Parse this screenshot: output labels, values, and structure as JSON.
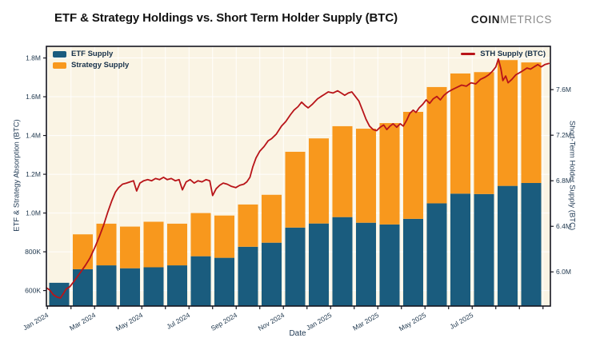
{
  "header": {
    "title": "ETF & Strategy Holdings vs. Short Term Holder Supply (BTC)",
    "logo_coin": "COIN",
    "logo_metrics": "METRICS"
  },
  "chart_data": {
    "type": "bar+line",
    "title": "ETF & Strategy Holdings vs. Short Term Holder Supply (BTC)",
    "plot_bg": "#faf4e4",
    "grid_color": "rgba(255,255,255,0.9)",
    "border_color": "#15151f",
    "categories": [
      "Jan 2024",
      "Feb 2024",
      "Mar 2024",
      "Apr 2024",
      "May 2024",
      "Jun 2024",
      "Jul 2024",
      "Aug 2024",
      "Sep 2024",
      "Oct 2024",
      "Nov 2024",
      "Dec 2024",
      "Jan 2025",
      "Feb 2025",
      "Mar 2025",
      "Apr 2025",
      "May 2025",
      "Jun 2025",
      "Jul 2025",
      "Aug 2025",
      "Sep 2025"
    ],
    "series": [
      {
        "name": "ETF Supply",
        "type": "bar",
        "color": "#1a5c7e",
        "values_k": [
          640,
          710,
          730,
          715,
          720,
          730,
          777,
          769,
          826,
          847,
          925,
          946,
          979,
          950,
          941,
          970,
          1050,
          1100,
          1098,
          1140,
          1155
        ]
      },
      {
        "name": "Strategy Supply",
        "type": "bar",
        "color": "#f8981d",
        "values_k": [
          0,
          180,
          215,
          215,
          235,
          215,
          223,
          218,
          218,
          247,
          391,
          439,
          469,
          485,
          523,
          552,
          600,
          620,
          629,
          649,
          622
        ]
      },
      {
        "name": "STH Supply (BTC)",
        "type": "line",
        "color": "#b81419",
        "axis": "right",
        "points": [
          [
            -0.54,
            5.86
          ],
          [
            -0.4,
            5.84
          ],
          [
            -0.25,
            5.8
          ],
          [
            -0.1,
            5.78
          ],
          [
            0.05,
            5.77
          ],
          [
            0.18,
            5.81
          ],
          [
            0.3,
            5.85
          ],
          [
            0.45,
            5.87
          ],
          [
            0.6,
            5.91
          ],
          [
            0.78,
            5.96
          ],
          [
            0.95,
            6.01
          ],
          [
            1.12,
            6.06
          ],
          [
            1.3,
            6.12
          ],
          [
            1.5,
            6.21
          ],
          [
            1.7,
            6.31
          ],
          [
            1.88,
            6.41
          ],
          [
            2.05,
            6.52
          ],
          [
            2.22,
            6.62
          ],
          [
            2.38,
            6.7
          ],
          [
            2.52,
            6.74
          ],
          [
            2.68,
            6.77
          ],
          [
            2.85,
            6.78
          ],
          [
            3.0,
            6.79
          ],
          [
            3.15,
            6.8
          ],
          [
            3.28,
            6.71
          ],
          [
            3.42,
            6.78
          ],
          [
            3.58,
            6.8
          ],
          [
            3.75,
            6.81
          ],
          [
            3.92,
            6.8
          ],
          [
            4.08,
            6.82
          ],
          [
            4.25,
            6.81
          ],
          [
            4.42,
            6.83
          ],
          [
            4.58,
            6.81
          ],
          [
            4.75,
            6.82
          ],
          [
            4.92,
            6.8
          ],
          [
            5.08,
            6.81
          ],
          [
            5.22,
            6.72
          ],
          [
            5.38,
            6.79
          ],
          [
            5.55,
            6.81
          ],
          [
            5.72,
            6.78
          ],
          [
            5.88,
            6.8
          ],
          [
            6.05,
            6.79
          ],
          [
            6.22,
            6.81
          ],
          [
            6.38,
            6.8
          ],
          [
            6.5,
            6.67
          ],
          [
            6.65,
            6.73
          ],
          [
            6.8,
            6.76
          ],
          [
            6.95,
            6.78
          ],
          [
            7.12,
            6.77
          ],
          [
            7.3,
            6.75
          ],
          [
            7.48,
            6.74
          ],
          [
            7.65,
            6.76
          ],
          [
            7.82,
            6.77
          ],
          [
            7.95,
            6.79
          ],
          [
            8.08,
            6.83
          ],
          [
            8.2,
            6.92
          ],
          [
            8.34,
            7.0
          ],
          [
            8.5,
            7.06
          ],
          [
            8.68,
            7.1
          ],
          [
            8.85,
            7.15
          ],
          [
            9.0,
            7.17
          ],
          [
            9.2,
            7.21
          ],
          [
            9.42,
            7.28
          ],
          [
            9.6,
            7.32
          ],
          [
            9.8,
            7.38
          ],
          [
            9.95,
            7.42
          ],
          [
            10.12,
            7.45
          ],
          [
            10.27,
            7.49
          ],
          [
            10.42,
            7.46
          ],
          [
            10.55,
            7.44
          ],
          [
            10.72,
            7.47
          ],
          [
            10.95,
            7.52
          ],
          [
            11.1,
            7.54
          ],
          [
            11.25,
            7.56
          ],
          [
            11.4,
            7.58
          ],
          [
            11.6,
            7.57
          ],
          [
            11.8,
            7.59
          ],
          [
            11.95,
            7.57
          ],
          [
            12.1,
            7.55
          ],
          [
            12.25,
            7.57
          ],
          [
            12.4,
            7.58
          ],
          [
            12.55,
            7.54
          ],
          [
            12.7,
            7.5
          ],
          [
            12.85,
            7.42
          ],
          [
            13.0,
            7.34
          ],
          [
            13.15,
            7.28
          ],
          [
            13.3,
            7.25
          ],
          [
            13.45,
            7.24
          ],
          [
            13.6,
            7.27
          ],
          [
            13.75,
            7.29
          ],
          [
            13.88,
            7.25
          ],
          [
            14.02,
            7.28
          ],
          [
            14.15,
            7.3
          ],
          [
            14.3,
            7.27
          ],
          [
            14.45,
            7.3
          ],
          [
            14.58,
            7.28
          ],
          [
            14.72,
            7.33
          ],
          [
            14.85,
            7.39
          ],
          [
            15.0,
            7.42
          ],
          [
            15.12,
            7.4
          ],
          [
            15.25,
            7.44
          ],
          [
            15.4,
            7.47
          ],
          [
            15.55,
            7.51
          ],
          [
            15.7,
            7.48
          ],
          [
            15.85,
            7.52
          ],
          [
            16.0,
            7.54
          ],
          [
            16.15,
            7.51
          ],
          [
            16.3,
            7.55
          ],
          [
            16.48,
            7.58
          ],
          [
            16.65,
            7.6
          ],
          [
            16.85,
            7.62
          ],
          [
            17.05,
            7.64
          ],
          [
            17.25,
            7.63
          ],
          [
            17.45,
            7.66
          ],
          [
            17.65,
            7.65
          ],
          [
            17.85,
            7.69
          ],
          [
            18.05,
            7.71
          ],
          [
            18.2,
            7.73
          ],
          [
            18.35,
            7.76
          ],
          [
            18.5,
            7.8
          ],
          [
            18.61,
            7.87
          ],
          [
            18.72,
            7.78
          ],
          [
            18.8,
            7.68
          ],
          [
            18.92,
            7.72
          ],
          [
            19.02,
            7.66
          ],
          [
            19.18,
            7.69
          ],
          [
            19.35,
            7.73
          ],
          [
            19.52,
            7.75
          ],
          [
            19.68,
            7.77
          ],
          [
            19.82,
            7.79
          ],
          [
            19.97,
            7.78
          ],
          [
            20.12,
            7.8
          ],
          [
            20.28,
            7.82
          ],
          [
            20.42,
            7.8
          ],
          [
            20.58,
            7.82
          ],
          [
            20.75,
            7.83
          ]
        ]
      }
    ],
    "left_axis": {
      "label": "ETF & Strategy Absorption (BTC)",
      "tick_labels": [
        "600K",
        "800K",
        "1.0M",
        "1.2M",
        "1.4M",
        "1.6M",
        "1.8M"
      ],
      "tick_values_k": [
        600,
        800,
        1000,
        1200,
        1400,
        1600,
        1800
      ],
      "range_k": [
        520,
        1860
      ]
    },
    "right_axis": {
      "label": "Short-Term Holder Supply (BTC)",
      "tick_labels": [
        "6.0M",
        "6.4M",
        "6.8M",
        "7.2M",
        "7.6M"
      ],
      "tick_values_m": [
        6.0,
        6.4,
        6.8,
        7.2,
        7.6
      ],
      "range_m": [
        5.7,
        7.98
      ]
    },
    "x_axis": {
      "label": "Date",
      "tick_labels": [
        "Jan 2024",
        "Mar 2024",
        "May 2024",
        "Jul 2024",
        "Sep 2024",
        "Nov 2024",
        "Jan 2025",
        "Mar 2025",
        "May 2025",
        "Jul 2025"
      ],
      "months_total": 21
    },
    "legend_left": [
      "ETF Supply",
      "Strategy Supply"
    ],
    "legend_right": [
      "STH Supply (BTC)"
    ]
  }
}
